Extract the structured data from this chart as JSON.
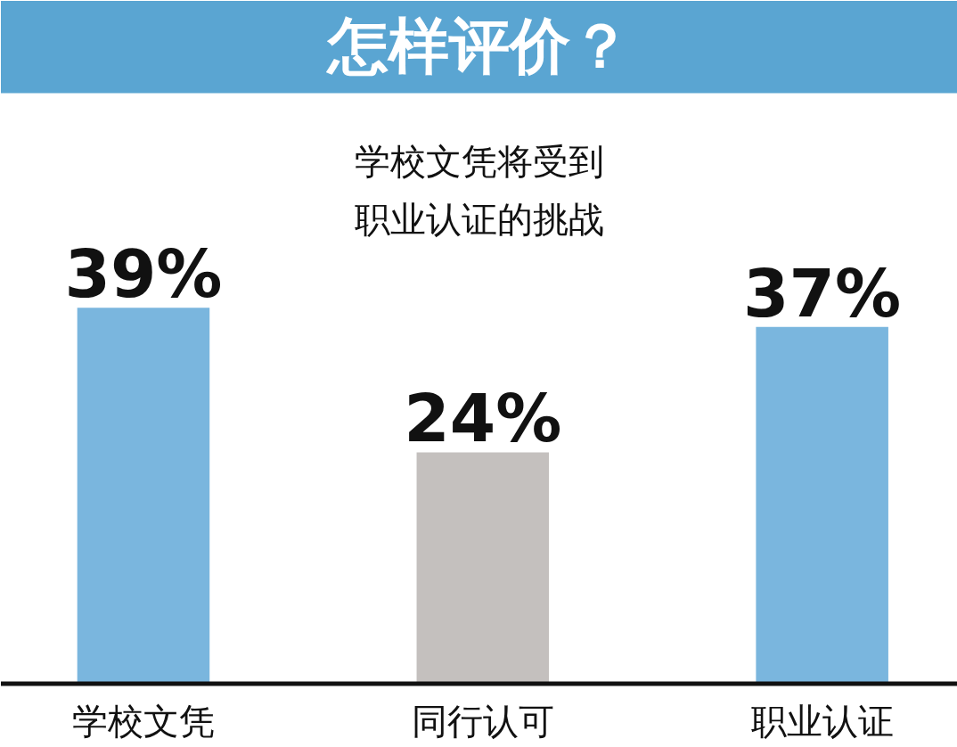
{
  "chart_data": {
    "type": "bar",
    "title": "怎样评价？",
    "subtitle": "学校文凭将受到职业认证的挑战",
    "categories": [
      "学校文凭",
      "同行认可",
      "职业认证"
    ],
    "values": [
      39,
      24,
      37
    ],
    "colors": [
      "#7ab6de",
      "#c4c0be",
      "#7ab6de"
    ],
    "value_labels": [
      "39%",
      "24%",
      "37%"
    ],
    "tick_labels": "x"
  }
}
